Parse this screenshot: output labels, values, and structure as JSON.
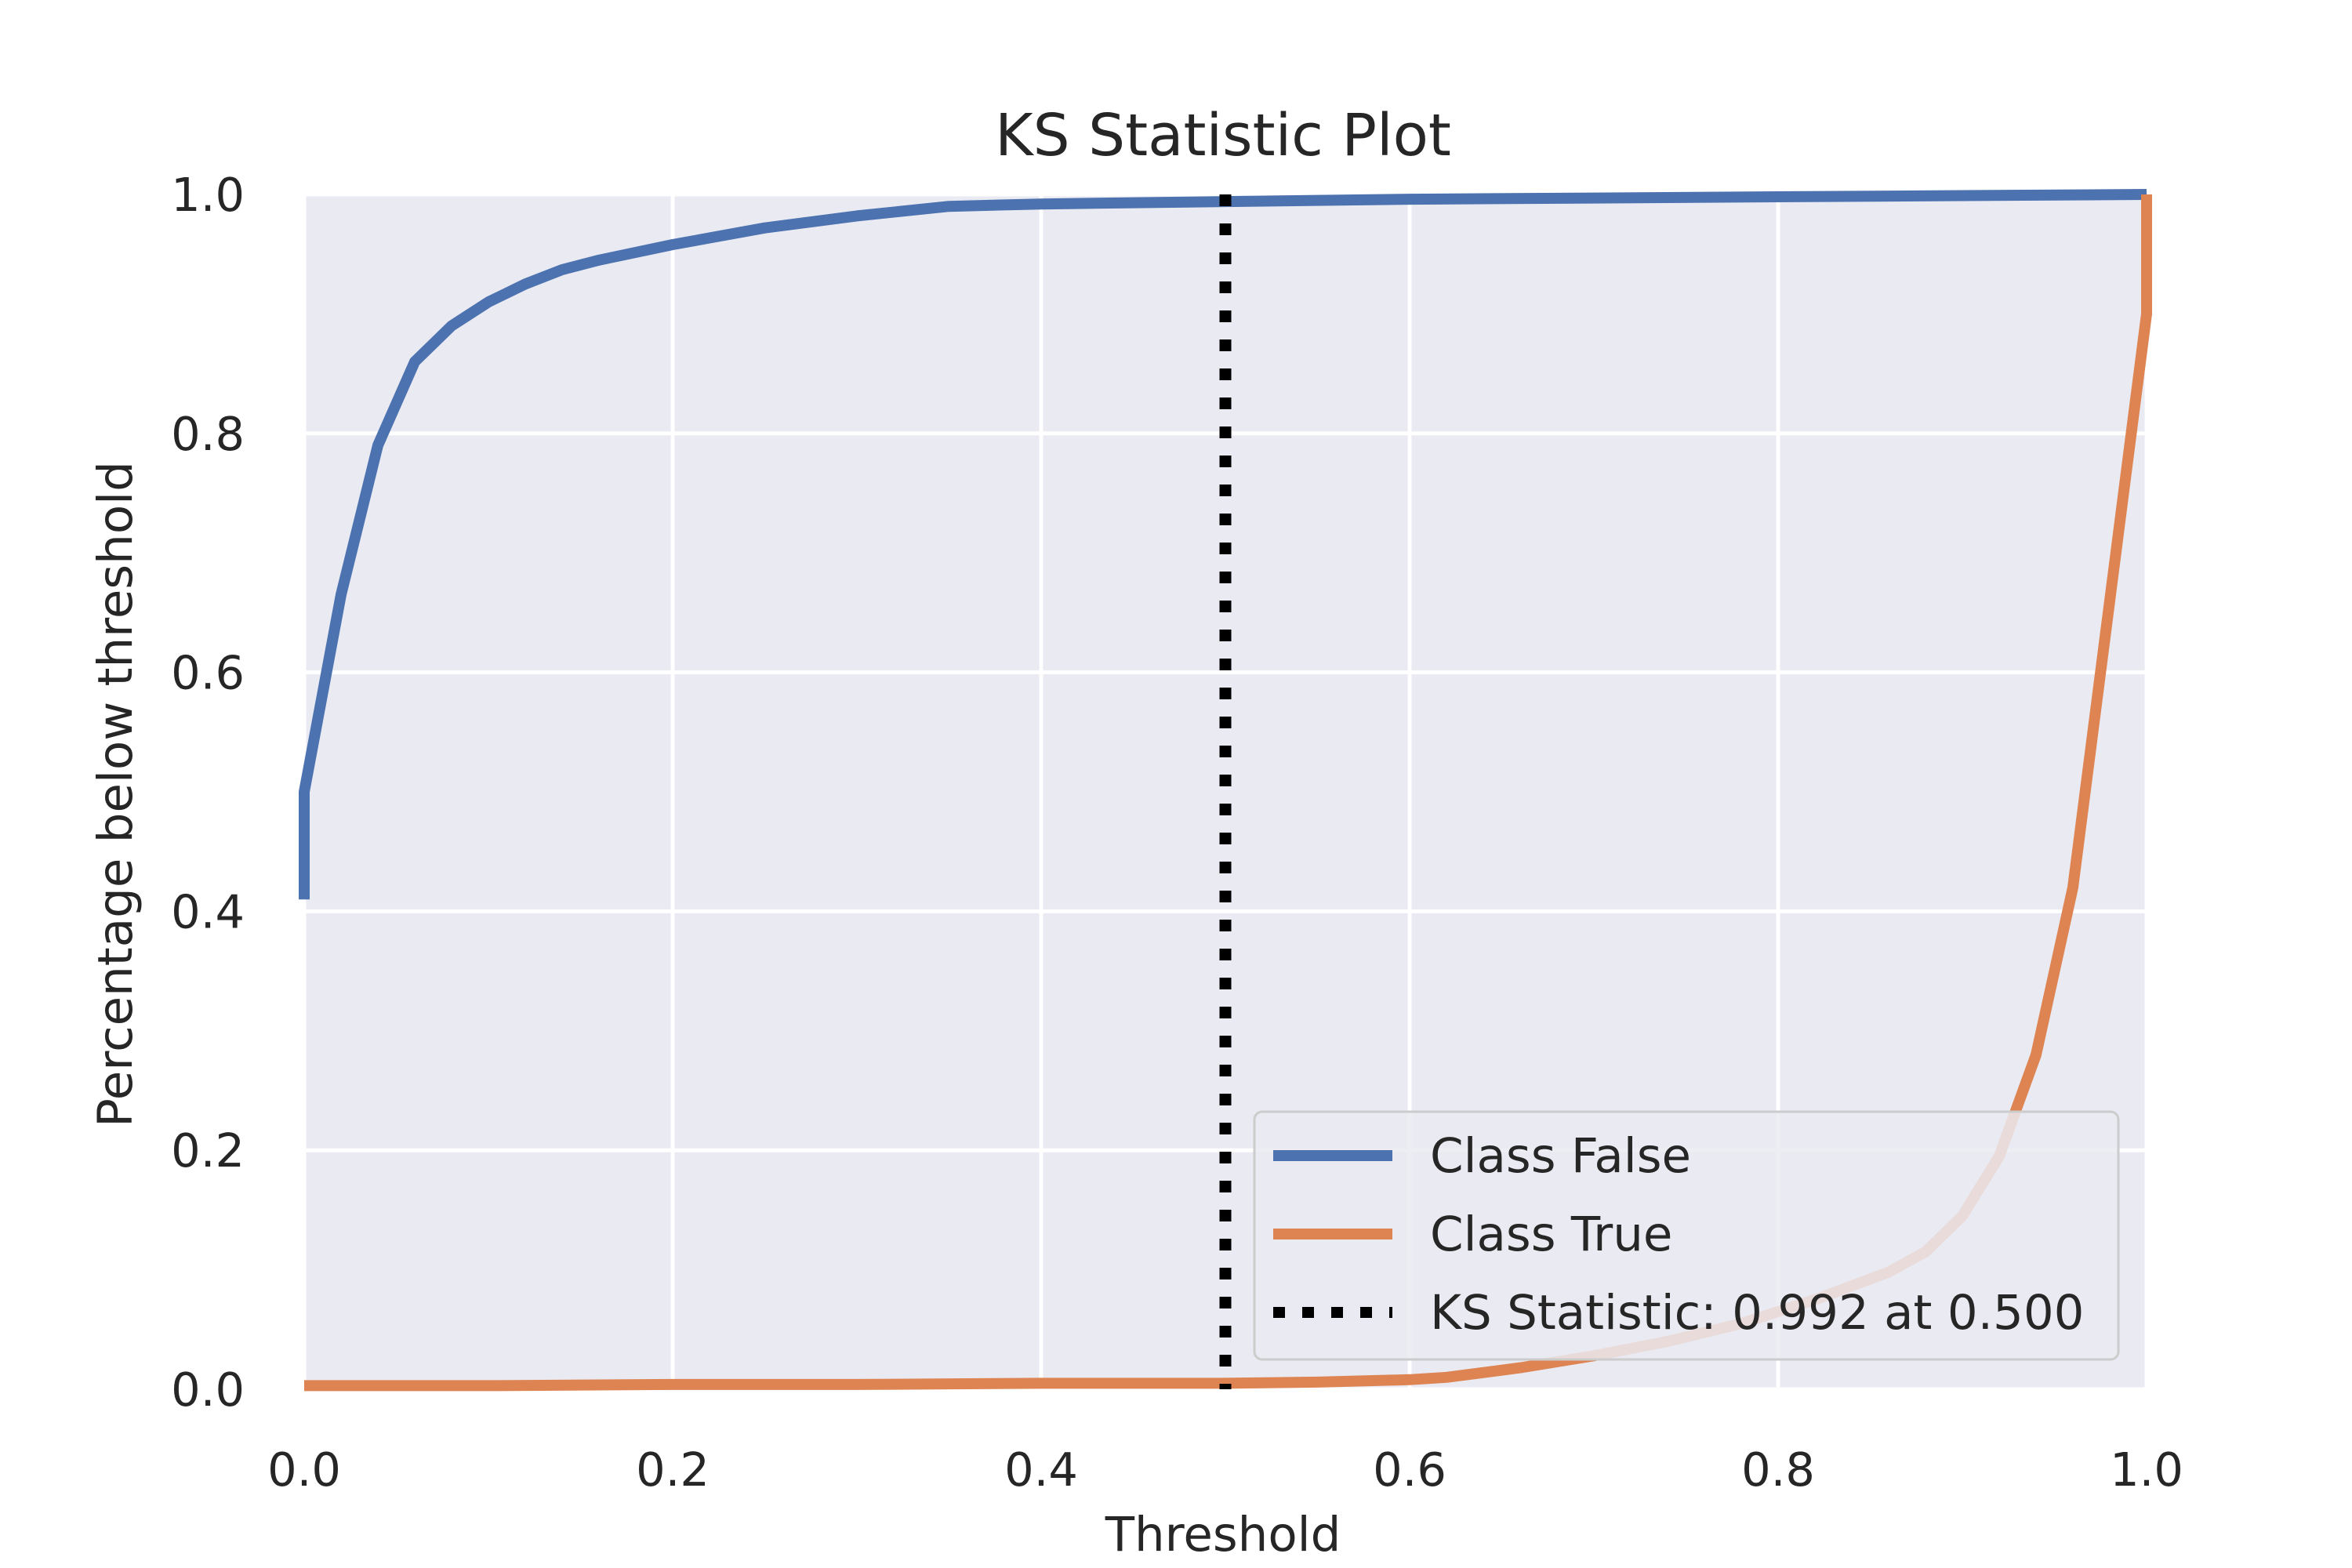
{
  "chart_data": {
    "type": "line",
    "title": "KS Statistic Plot",
    "xlabel": "Threshold",
    "ylabel": "Percentage below threshold",
    "xlim": [
      0.0,
      1.0
    ],
    "ylim": [
      0.0,
      1.0
    ],
    "xticks": [
      "0.0",
      "0.2",
      "0.4",
      "0.6",
      "0.8",
      "1.0"
    ],
    "yticks": [
      "0.0",
      "0.2",
      "0.4",
      "0.6",
      "0.8",
      "1.0"
    ],
    "grid": true,
    "legend_position": "lower-right",
    "background_color": "#eaeaf2",
    "series": [
      {
        "name": "Class False",
        "color": "#4c72b0",
        "style": "solid",
        "x": [
          0.0,
          0.0,
          0.02,
          0.04,
          0.06,
          0.08,
          0.1,
          0.12,
          0.14,
          0.16,
          0.2,
          0.25,
          0.3,
          0.35,
          0.4,
          0.5,
          0.6,
          0.7,
          0.8,
          0.9,
          1.0
        ],
        "y": [
          0.41,
          0.5,
          0.665,
          0.79,
          0.86,
          0.89,
          0.91,
          0.925,
          0.937,
          0.945,
          0.958,
          0.972,
          0.982,
          0.99,
          0.992,
          0.994,
          0.996,
          0.997,
          0.998,
          0.999,
          1.0
        ]
      },
      {
        "name": "Class True",
        "color": "#dd8452",
        "style": "solid",
        "x": [
          0.0,
          0.1,
          0.2,
          0.3,
          0.4,
          0.5,
          0.55,
          0.6,
          0.62,
          0.66,
          0.7,
          0.74,
          0.78,
          0.82,
          0.86,
          0.88,
          0.9,
          0.92,
          0.94,
          0.96,
          0.98,
          1.0,
          1.0
        ],
        "y": [
          0.003,
          0.003,
          0.004,
          0.004,
          0.005,
          0.005,
          0.006,
          0.008,
          0.01,
          0.018,
          0.028,
          0.04,
          0.055,
          0.075,
          0.098,
          0.115,
          0.145,
          0.195,
          0.28,
          0.42,
          0.66,
          0.9,
          1.0
        ]
      }
    ],
    "ks_line": {
      "name": "KS Statistic: 0.992 at 0.500",
      "x": 0.5,
      "y_range": [
        0.0,
        1.0
      ],
      "color": "#000000",
      "style": "dotted"
    }
  }
}
